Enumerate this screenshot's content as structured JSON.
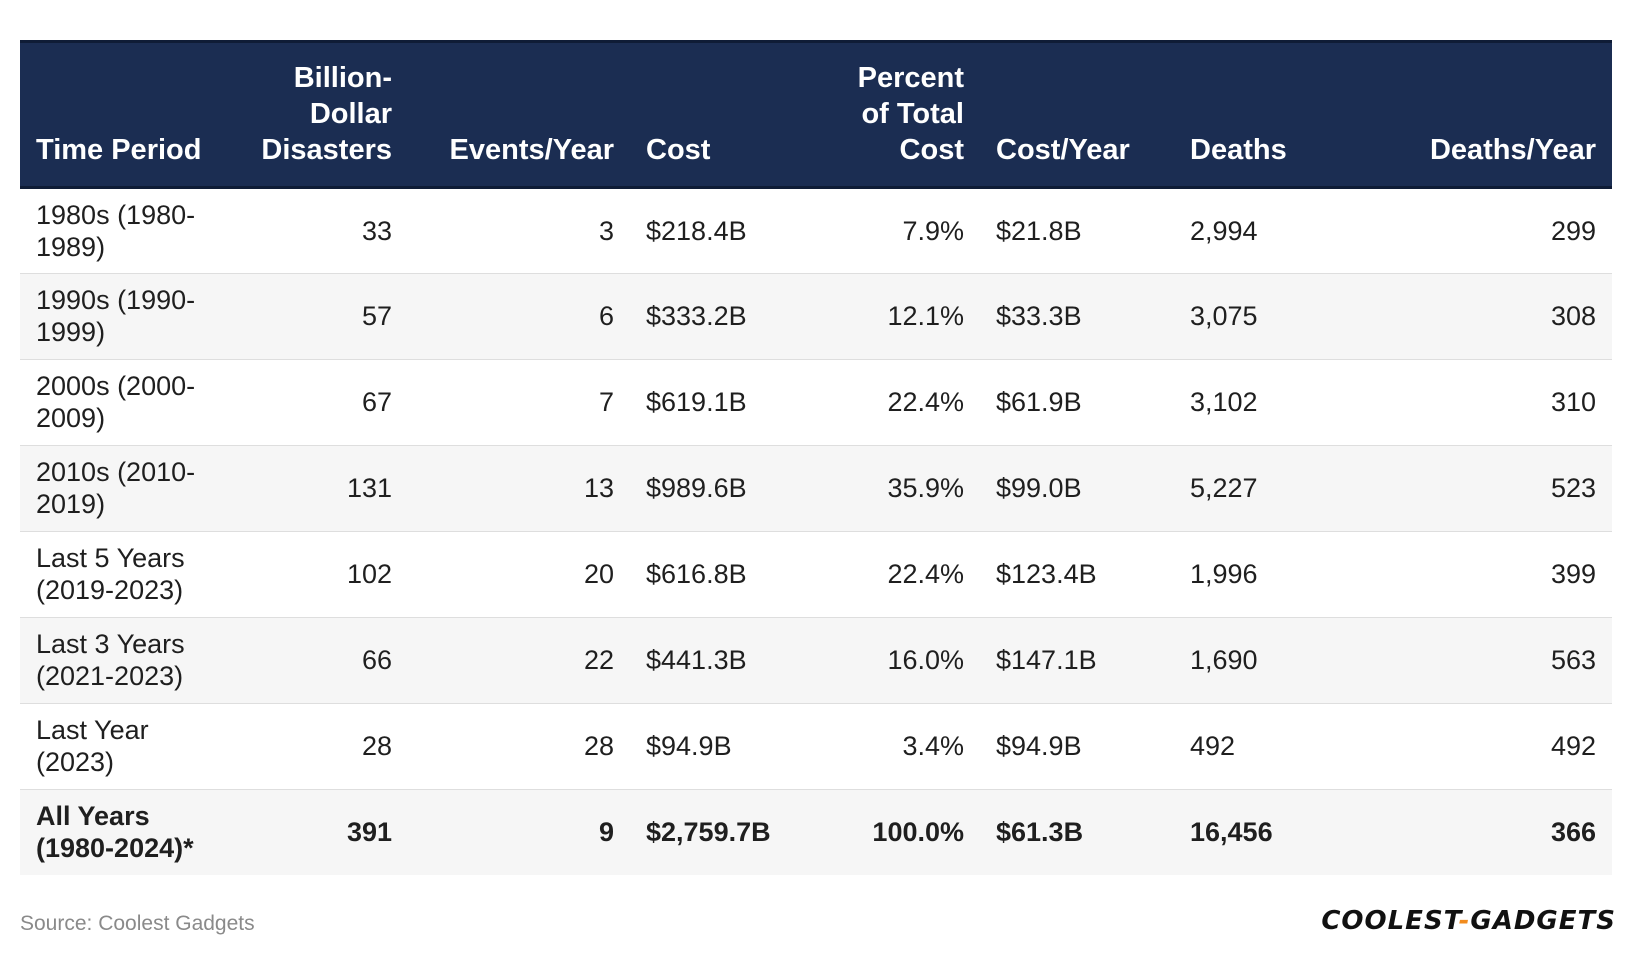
{
  "chart_data": {
    "type": "table",
    "columns": [
      "Time Period",
      "Billion-Dollar Disasters",
      "Events/Year",
      "Cost",
      "Percent of Total Cost",
      "Cost/Year",
      "Deaths",
      "Deaths/Year"
    ],
    "rows": [
      [
        "1980s (1980-1989)",
        "33",
        "3",
        "$218.4B",
        "7.9%",
        "$21.8B",
        "2,994",
        "299"
      ],
      [
        "1990s (1990-1999)",
        "57",
        "6",
        "$333.2B",
        "12.1%",
        "$33.3B",
        "3,075",
        "308"
      ],
      [
        "2000s (2000-2009)",
        "67",
        "7",
        "$619.1B",
        "22.4%",
        "$61.9B",
        "3,102",
        "310"
      ],
      [
        "2010s (2010-2019)",
        "131",
        "13",
        "$989.6B",
        "35.9%",
        "$99.0B",
        "5,227",
        "523"
      ],
      [
        "Last 5 Years (2019-2023)",
        "102",
        "20",
        "$616.8B",
        "22.4%",
        "$123.4B",
        "1,996",
        "399"
      ],
      [
        "Last 3 Years (2021-2023)",
        "66",
        "22",
        "$441.3B",
        "16.0%",
        "$147.1B",
        "1,690",
        "563"
      ],
      [
        "Last Year (2023)",
        "28",
        "28",
        "$94.9B",
        "3.4%",
        "$94.9B",
        "492",
        "492"
      ]
    ],
    "total_row": [
      "All Years (1980-2024)*",
      "391",
      "9",
      "$2,759.7B",
      "100.0%",
      "$61.3B",
      "16,456",
      "366"
    ]
  },
  "footer": {
    "source": "Source: Coolest Gadgets",
    "logo_left": "COOLEST",
    "logo_dash": "-",
    "logo_right": "GADGETS"
  },
  "colors": {
    "header_bg": "#1b2d52",
    "header_text": "#ffffff",
    "row_alt": "#f6f6f6",
    "logo_accent": "#f28c1e"
  }
}
